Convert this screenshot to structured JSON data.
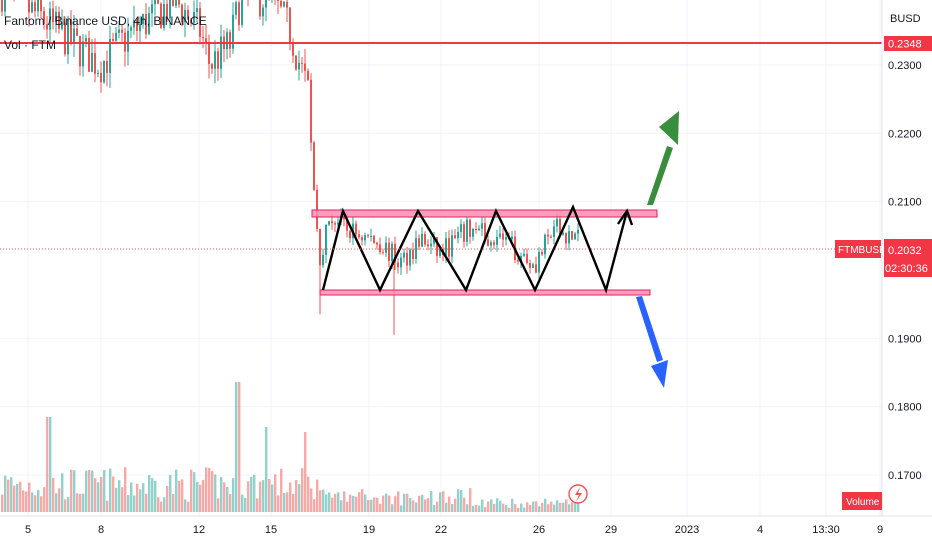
{
  "header": {
    "symbol_line": "Fantom / Binance USD, 4h, BINANCE",
    "volume_label": "Vol · FTM"
  },
  "price_axis": {
    "currency": "BUSD",
    "ticks": [
      "0.2300",
      "0.2200",
      "0.2100",
      "0.1900",
      "0.1800",
      "0.1700"
    ],
    "resistance_label": "0.2348",
    "current_symbol": "FTMBUSD",
    "current_price": "0.2032",
    "countdown": "02:30:36",
    "volume_tag": "Volume"
  },
  "time_axis": {
    "ticks": [
      "5",
      "8",
      "12",
      "15",
      "19",
      "22",
      "26",
      "29",
      "2023",
      "4",
      "13:30",
      "9"
    ]
  },
  "colors": {
    "up": "#26a69a",
    "down": "#ef5350",
    "level_line": "#f23645",
    "zone_fill": "#f48fb1",
    "zone_stroke": "#e91e63",
    "breakout_up": "#388e3c",
    "breakout_down": "#2962ff",
    "pattern": "#000000"
  },
  "chart_data": {
    "type": "candlestick",
    "symbol": "FTMBUSD",
    "interval": "4h",
    "exchange": "BINANCE",
    "ylim": [
      0.164,
      0.2395
    ],
    "x_ticks": [
      "5",
      "8",
      "12",
      "15",
      "19",
      "22",
      "26",
      "29",
      "2023",
      "4",
      "13:30",
      "9"
    ],
    "resistance_level": 0.2348,
    "last_price": 0.2032,
    "range_zone": {
      "top": 0.2094,
      "bottom": 0.1963
    },
    "annotations": [
      "horizontal resistance line at 0.2348",
      "sideways range between ~0.1965 and ~0.2093",
      "zigzag pattern within the range",
      "green arrow: upside breakout",
      "blue arrow: downside breakdown"
    ]
  }
}
